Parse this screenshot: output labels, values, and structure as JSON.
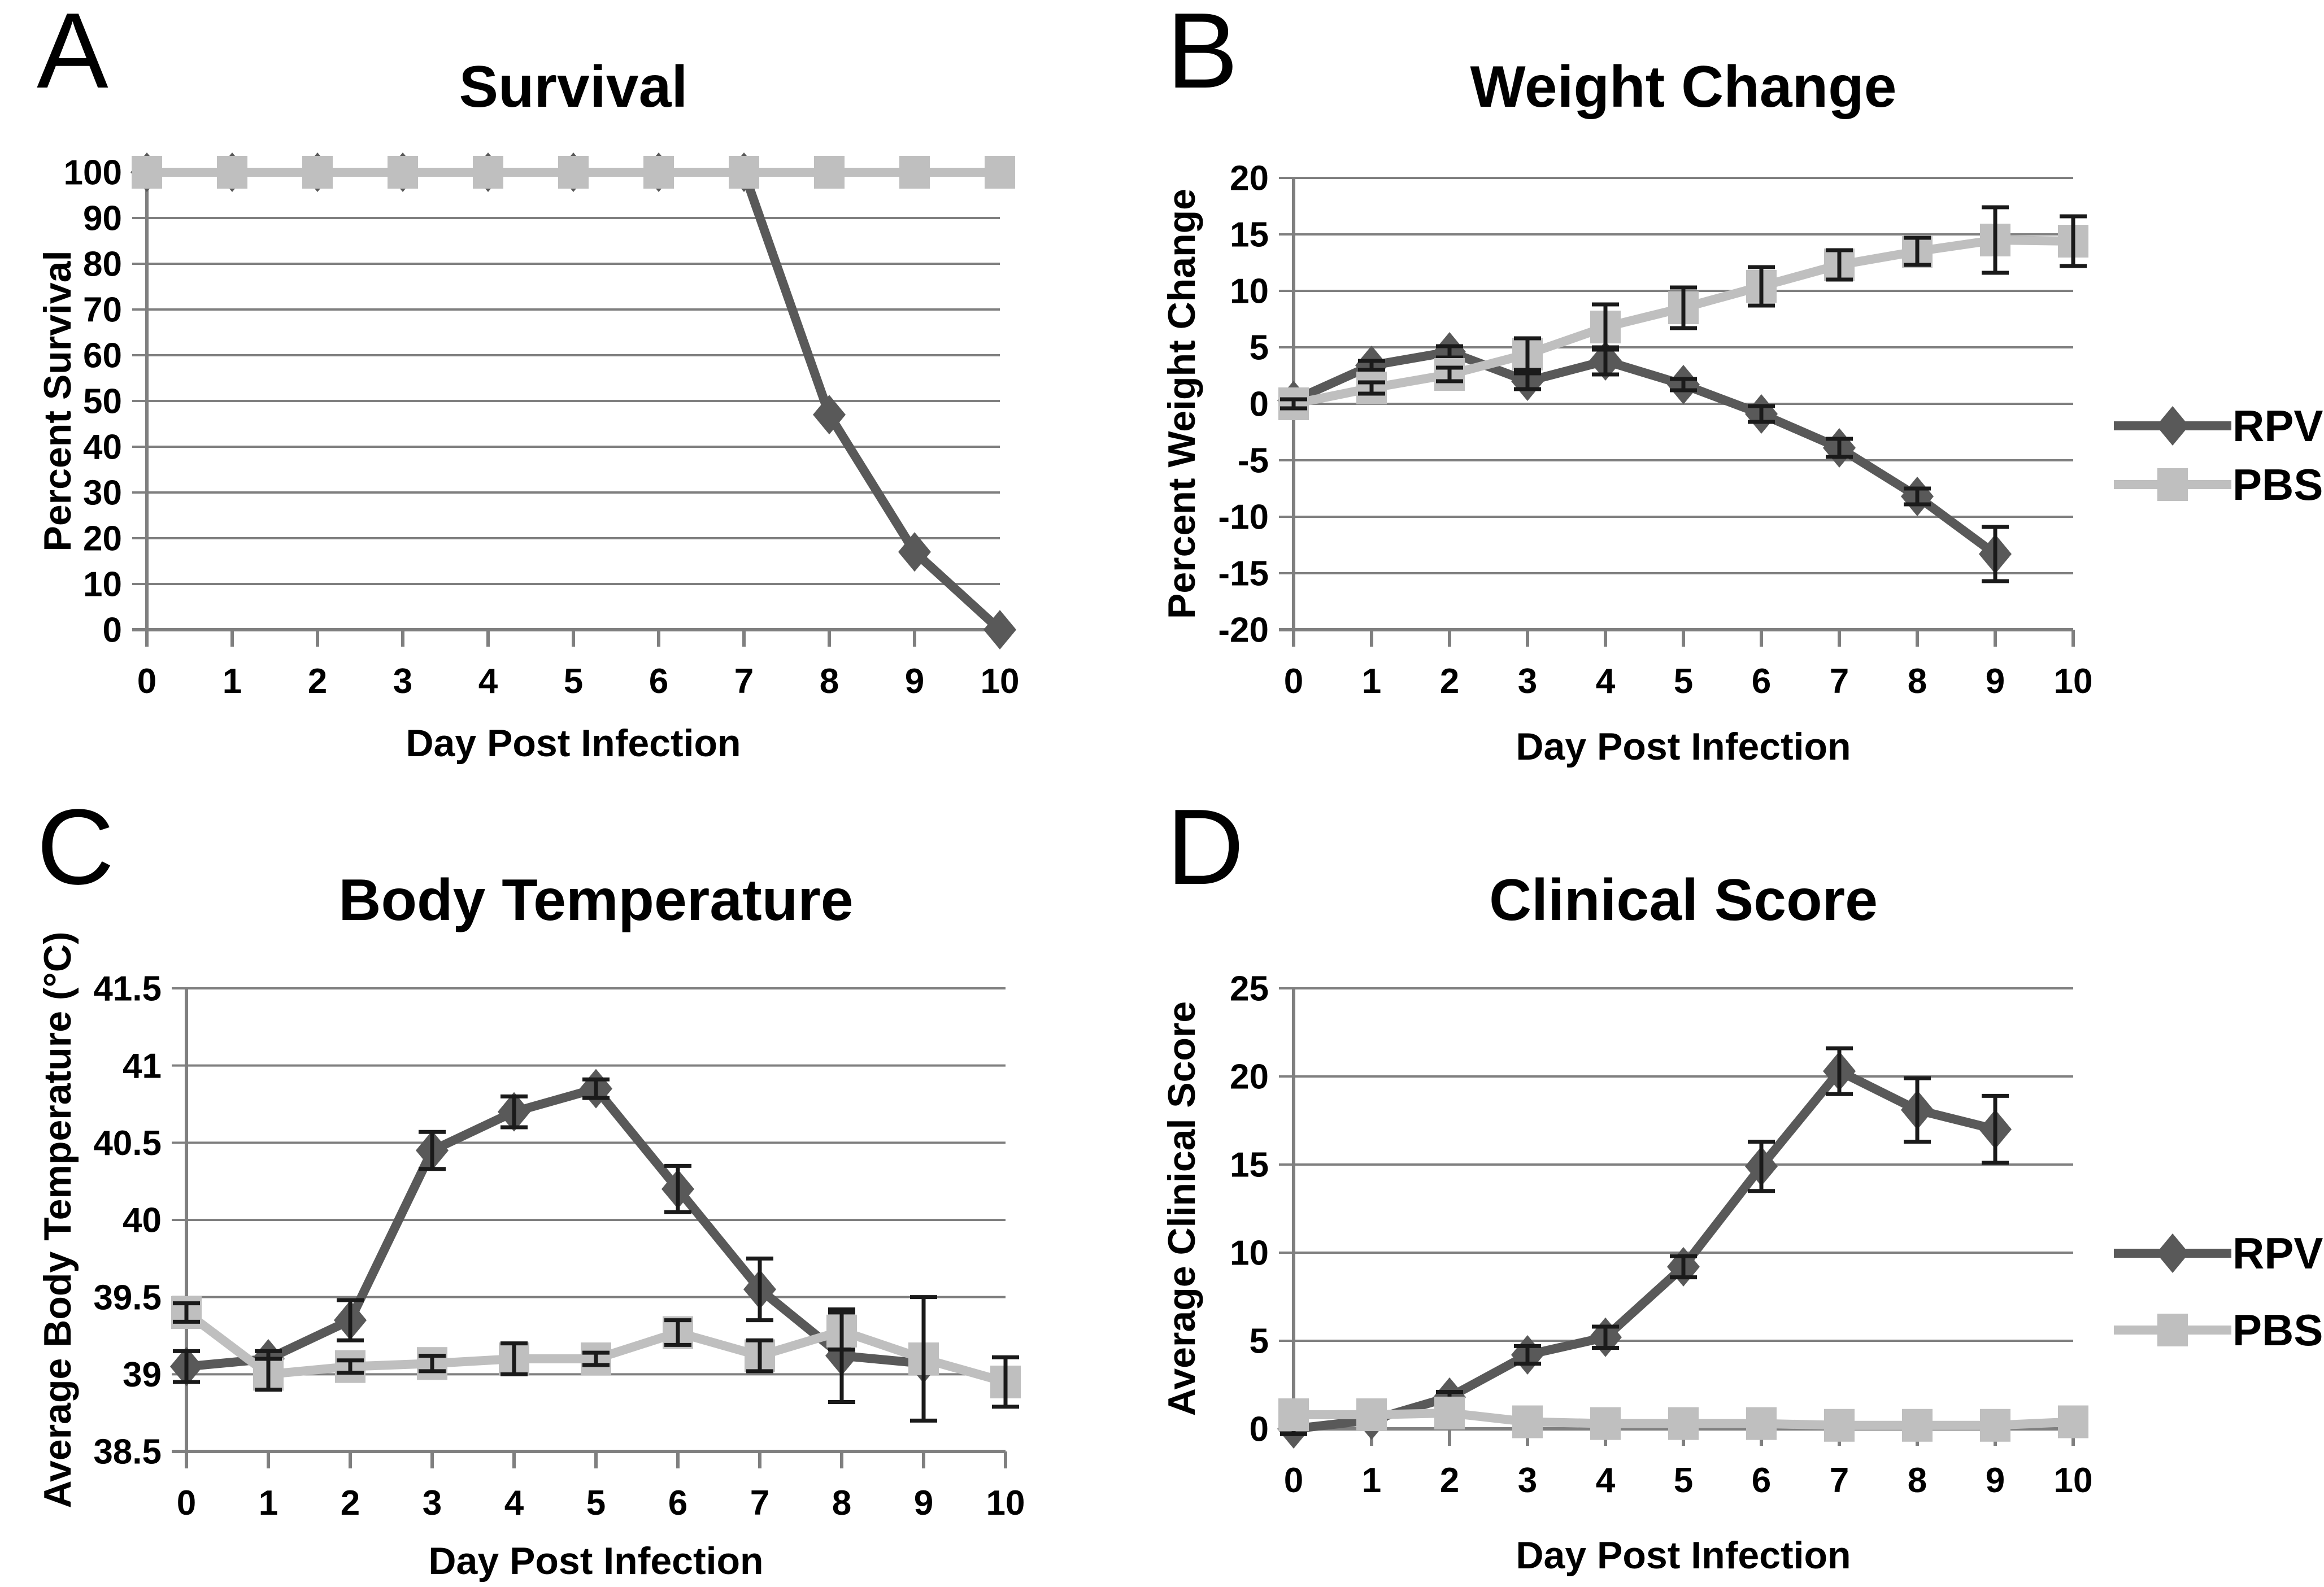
{
  "page": {
    "background": "#ffffff"
  },
  "figure": {
    "panel_letters": [
      "A",
      "B",
      "C",
      "D"
    ]
  },
  "colors": {
    "rpv": "#595959",
    "pbs": "#bfbfbf",
    "grid": "#7f7f7f",
    "axis": "#7f7f7f",
    "error_bar": "#1a1a1a",
    "text": "#000000"
  },
  "chart_data": [
    {
      "id": "survival",
      "type": "line",
      "title": "Survival",
      "xlabel": "Day Post Infection",
      "ylabel": "Percent Survival",
      "x": [
        0,
        1,
        2,
        3,
        4,
        5,
        6,
        7,
        8,
        9,
        10
      ],
      "xlim": [
        0,
        10
      ],
      "ylim": [
        0,
        100
      ],
      "yticks": [
        0,
        10,
        20,
        30,
        40,
        50,
        60,
        70,
        80,
        90,
        100
      ],
      "grid": true,
      "legend": false,
      "series": [
        {
          "name": "RPV",
          "marker": "diamond",
          "color_key": "rpv",
          "values": [
            100,
            100,
            100,
            100,
            100,
            100,
            100,
            100,
            47,
            17,
            0
          ]
        },
        {
          "name": "PBS",
          "marker": "square",
          "color_key": "pbs",
          "values": [
            100,
            100,
            100,
            100,
            100,
            100,
            100,
            100,
            100,
            100,
            100
          ]
        }
      ]
    },
    {
      "id": "weight-change",
      "type": "line",
      "title": "Weight Change",
      "xlabel": "Day Post Infection",
      "ylabel": "Percent Weight Change",
      "x": [
        0,
        1,
        2,
        3,
        4,
        5,
        6,
        7,
        8,
        9,
        10
      ],
      "xlim": [
        0,
        10
      ],
      "ylim": [
        -20,
        20
      ],
      "yticks": [
        -20,
        -15,
        -10,
        -5,
        0,
        5,
        10,
        15,
        20
      ],
      "grid": true,
      "legend": true,
      "legend_position": "right",
      "series": [
        {
          "name": "RPV",
          "marker": "diamond",
          "color_key": "rpv",
          "values": [
            0.3,
            3.4,
            4.6,
            2.0,
            3.8,
            1.7,
            -0.9,
            -3.9,
            -8.2,
            -13.3,
            null
          ],
          "err": [
            0,
            0.4,
            0.5,
            0.7,
            1.2,
            0.5,
            0.7,
            0.8,
            0.7,
            2.4,
            null
          ]
        },
        {
          "name": "PBS",
          "marker": "square",
          "color_key": "pbs",
          "values": [
            0,
            1.4,
            2.6,
            4.4,
            6.8,
            8.5,
            10.4,
            12.3,
            13.5,
            14.5,
            14.4
          ],
          "err": [
            0.4,
            0.5,
            0.6,
            1.4,
            2.0,
            1.8,
            1.7,
            1.3,
            1.2,
            2.9,
            2.2
          ]
        }
      ]
    },
    {
      "id": "body-temperature",
      "type": "line",
      "title": "Body Temperature",
      "xlabel": "Day Post Infection",
      "ylabel": "Average Body Temperature (°C)",
      "x": [
        0,
        1,
        2,
        3,
        4,
        5,
        6,
        7,
        8,
        9,
        10
      ],
      "xlim": [
        0,
        10
      ],
      "ylim": [
        38.5,
        41.5
      ],
      "yticks": [
        38.5,
        39,
        39.5,
        40,
        40.5,
        41,
        41.5
      ],
      "grid": true,
      "legend": false,
      "series": [
        {
          "name": "RPV",
          "marker": "diamond",
          "color_key": "rpv",
          "values": [
            39.05,
            39.1,
            39.35,
            40.45,
            40.7,
            40.85,
            40.2,
            39.55,
            39.12,
            39.07,
            null
          ],
          "err": [
            0.1,
            0.05,
            0.13,
            0.12,
            0.1,
            0.06,
            0.15,
            0.2,
            0.3,
            0,
            null
          ]
        },
        {
          "name": "PBS",
          "marker": "square",
          "color_key": "pbs",
          "values": [
            39.4,
            39.0,
            39.05,
            39.07,
            39.1,
            39.1,
            39.27,
            39.12,
            39.28,
            39.1,
            38.95
          ],
          "err": [
            0.06,
            0.1,
            0.04,
            0.05,
            0.1,
            0.04,
            0.08,
            0.1,
            0.12,
            0.4,
            0.16
          ]
        }
      ]
    },
    {
      "id": "clinical-score",
      "type": "line",
      "title": "Clinical Score",
      "xlabel": "Day Post Infection",
      "ylabel": "Average Clinical Score",
      "x": [
        0,
        1,
        2,
        3,
        4,
        5,
        6,
        7,
        8,
        9,
        10
      ],
      "xlim": [
        0,
        10
      ],
      "ylim": [
        0,
        25
      ],
      "yticks": [
        0,
        5,
        10,
        15,
        20,
        25
      ],
      "grid": true,
      "legend": true,
      "legend_position": "right",
      "series": [
        {
          "name": "RPV",
          "marker": "diamond",
          "color_key": "rpv",
          "values": [
            0,
            0.5,
            1.8,
            4.2,
            5.2,
            9.2,
            14.9,
            20.3,
            18.1,
            17,
            null
          ],
          "err": [
            0.3,
            0.4,
            0.3,
            0.5,
            0.6,
            0.6,
            1.4,
            1.3,
            1.8,
            1.9,
            null
          ]
        },
        {
          "name": "PBS",
          "marker": "square",
          "color_key": "pbs",
          "values": [
            0.8,
            0.8,
            0.9,
            0.4,
            0.3,
            0.3,
            0.3,
            0.2,
            0.2,
            0.2,
            0.4
          ],
          "err": [
            0,
            0,
            0,
            0,
            0,
            0,
            0,
            0,
            0,
            0,
            0
          ]
        }
      ]
    }
  ]
}
